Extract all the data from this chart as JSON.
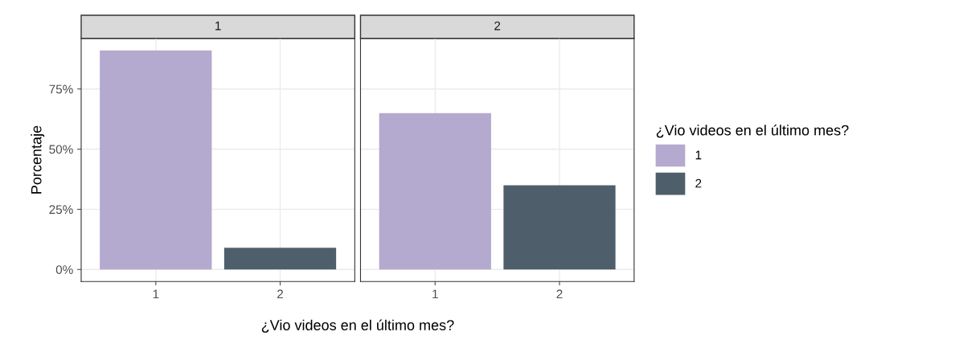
{
  "chart_data": [
    {
      "type": "bar",
      "title": "1",
      "categories": [
        "1",
        "2"
      ],
      "series": [
        {
          "name": "1",
          "color": "#b4a9ce",
          "values": [
            91,
            null
          ]
        },
        {
          "name": "2",
          "color": "#4e5f6b",
          "values": [
            null,
            9
          ]
        }
      ],
      "ylim": [
        -5,
        96
      ],
      "yticks": [
        {
          "value": 0,
          "label": "0%"
        },
        {
          "value": 25,
          "label": "25%"
        },
        {
          "value": 50,
          "label": "50%"
        },
        {
          "value": 75,
          "label": "75%"
        }
      ],
      "ylabel": "Porcentaje",
      "xlabel": "¿Vio videos en el último mes?",
      "legend": "right",
      "legend_title": "¿Vio videos en el último mes?",
      "grid": true
    },
    {
      "type": "bar",
      "title": "2",
      "categories": [
        "1",
        "2"
      ],
      "series": [
        {
          "color": "#b4a9ce",
          "values": [
            65,
            null
          ]
        },
        {
          "color": "#4e5f6b",
          "values": [
            null,
            35
          ]
        }
      ],
      "ylim": [
        -5,
        96
      ],
      "yticks": [
        0,
        25,
        50,
        75
      ],
      "tick_labels": "x",
      "grid": true
    }
  ]
}
